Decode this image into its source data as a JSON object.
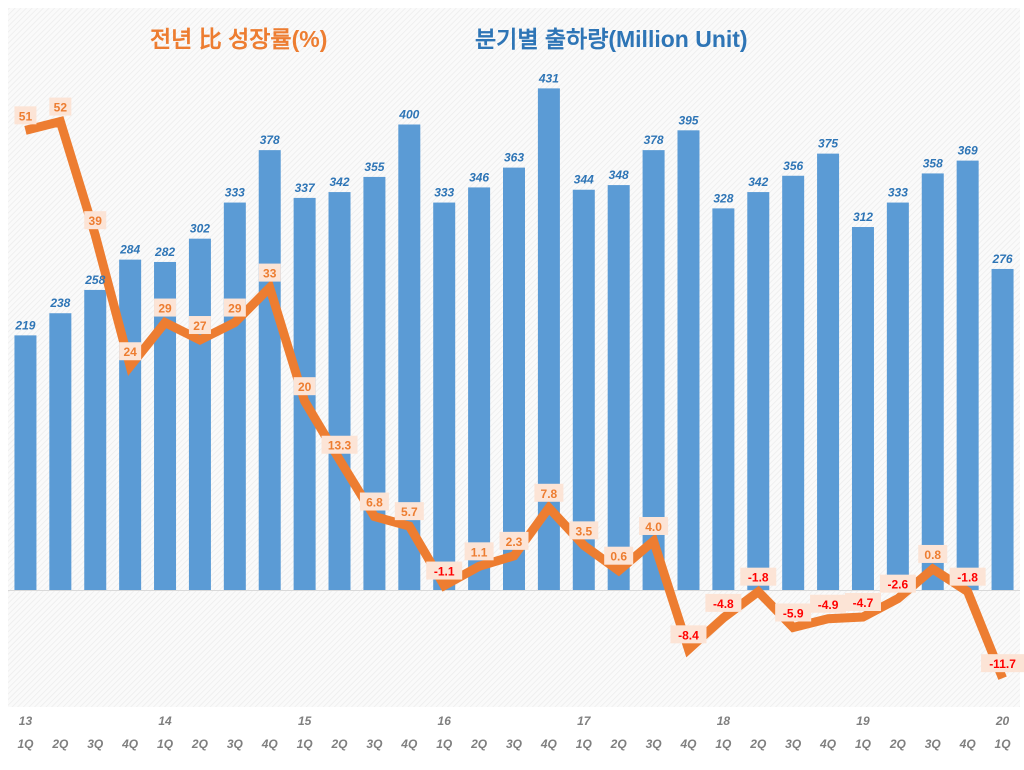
{
  "chart_data": {
    "type": "bar+line",
    "titles": {
      "line": "전년 比 성장률(%)",
      "bar": "분기별 출하량(Million Unit)"
    },
    "categories": [
      {
        "year": "13",
        "q": "1Q"
      },
      {
        "year": "",
        "q": "2Q"
      },
      {
        "year": "",
        "q": "3Q"
      },
      {
        "year": "",
        "q": "4Q"
      },
      {
        "year": "14",
        "q": "1Q"
      },
      {
        "year": "",
        "q": "2Q"
      },
      {
        "year": "",
        "q": "3Q"
      },
      {
        "year": "",
        "q": "4Q"
      },
      {
        "year": "15",
        "q": "1Q"
      },
      {
        "year": "",
        "q": "2Q"
      },
      {
        "year": "",
        "q": "3Q"
      },
      {
        "year": "",
        "q": "4Q"
      },
      {
        "year": "16",
        "q": "1Q"
      },
      {
        "year": "",
        "q": "2Q"
      },
      {
        "year": "",
        "q": "3Q"
      },
      {
        "year": "",
        "q": "4Q"
      },
      {
        "year": "17",
        "q": "1Q"
      },
      {
        "year": "",
        "q": "2Q"
      },
      {
        "year": "",
        "q": "3Q"
      },
      {
        "year": "",
        "q": "4Q"
      },
      {
        "year": "18",
        "q": "1Q"
      },
      {
        "year": "",
        "q": "2Q"
      },
      {
        "year": "",
        "q": "3Q"
      },
      {
        "year": "",
        "q": "4Q"
      },
      {
        "year": "19",
        "q": "1Q"
      },
      {
        "year": "",
        "q": "2Q"
      },
      {
        "year": "",
        "q": "3Q"
      },
      {
        "year": "",
        "q": "4Q"
      },
      {
        "year": "20",
        "q": "1Q"
      }
    ],
    "series": [
      {
        "kind": "bar",
        "values": [
          219,
          238,
          258,
          284,
          282,
          302,
          333,
          378,
          337,
          342,
          355,
          400,
          333,
          346,
          363,
          431,
          344,
          348,
          378,
          395,
          328,
          342,
          356,
          375,
          312,
          333,
          358,
          369,
          276
        ],
        "color": "#5b9bd5"
      },
      {
        "kind": "line",
        "labels": [
          "51",
          "52",
          "39",
          "24",
          "29",
          "27",
          "29",
          "33",
          "20",
          "13.3",
          "6.8",
          "5.7",
          "-1.1",
          "1.1",
          "2.3",
          "7.8",
          "3.5",
          "0.6",
          "4.0",
          "-8.4",
          "-4.8",
          "-1.8",
          "-5.9",
          "-4.9",
          "-4.7",
          "-2.6",
          "0.8",
          "-1.8",
          "-11.7"
        ],
        "color": "#ed7d31"
      }
    ],
    "bar_ylim": [
      -100,
      500
    ],
    "line_ylim": [
      -15,
      65
    ],
    "grid": false,
    "colors": {
      "bar_label": "#2e75b6",
      "line_label_pos": "#ed7d31",
      "line_label_neg": "#ff0000",
      "label_box": "#fce4d6",
      "axis_label": "#7f7f7f"
    }
  }
}
